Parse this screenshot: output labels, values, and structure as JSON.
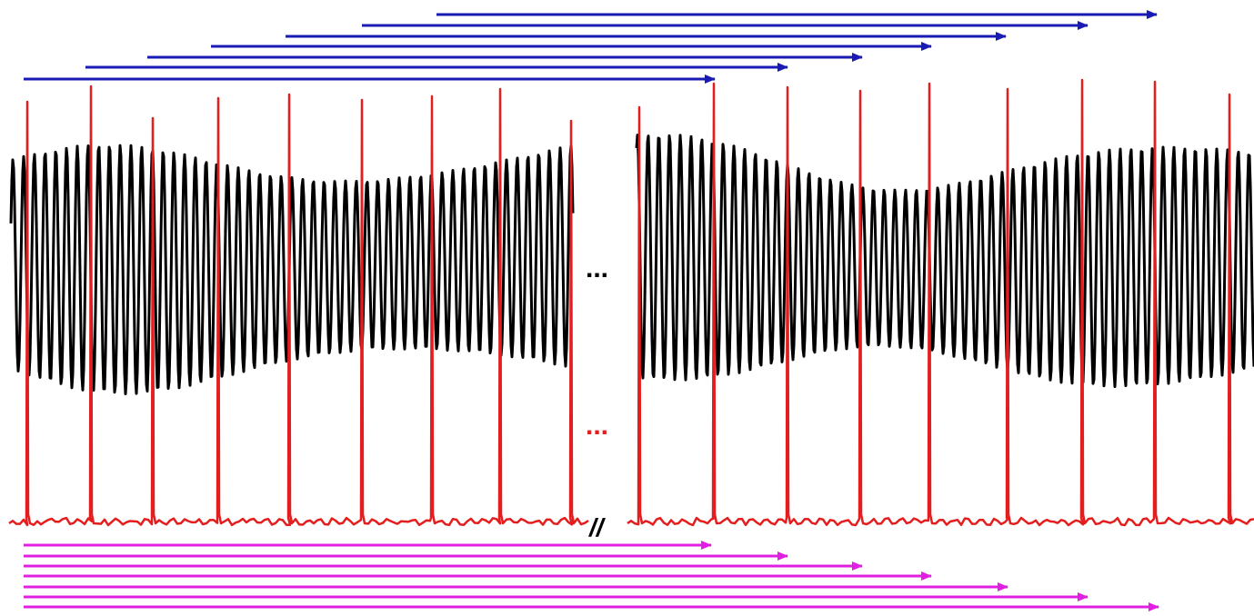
{
  "figure": {
    "ellipsis_top": "...",
    "ellipsis_bottom": "...",
    "break_mark": "//"
  },
  "colors": {
    "background": "#ffffff",
    "black_trace": "#000000",
    "red_trace": "#e41e1e",
    "blue_arrows": "#1a1ab4",
    "magenta_arrows": "#e020e0"
  },
  "traces": [
    {
      "name": "black-waveform",
      "color_key": "black_trace"
    },
    {
      "name": "red-pulse-train",
      "color_key": "red_trace"
    }
  ],
  "arrow_groups": [
    {
      "name": "blue-arrow-set",
      "color_key": "blue_arrows",
      "count": 7
    },
    {
      "name": "magenta-arrow-set",
      "color_key": "magenta_arrows",
      "count": 7
    }
  ]
}
